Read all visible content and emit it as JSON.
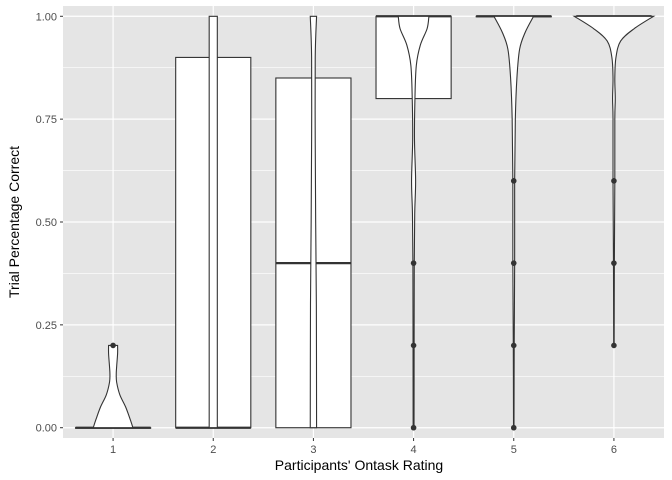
{
  "chart_data": {
    "type": "box-violin",
    "xlabel": "Participants' Ontask Rating",
    "ylabel": "Trial Percentage Correct",
    "categories": [
      "1",
      "2",
      "3",
      "4",
      "5",
      "6"
    ],
    "ylim": [
      -0.025,
      1.025
    ],
    "yticks": [
      0.0,
      0.25,
      0.5,
      0.75,
      1.0
    ],
    "ytick_labels": [
      "0.00",
      "0.25",
      "0.50",
      "0.75",
      "1.00"
    ],
    "grid": true,
    "colors": {
      "panel": "#e5e5e5",
      "grid": "#ffffff",
      "outline": "#333333",
      "fill": "#ffffff",
      "point": "#333333"
    },
    "boxes": [
      {
        "category": "1",
        "q1": 0.0,
        "median": 0.0,
        "q3": 0.0
      },
      {
        "category": "2",
        "q1": 0.0,
        "median": 0.0,
        "q3": 0.9
      },
      {
        "category": "3",
        "q1": 0.0,
        "median": 0.4,
        "q3": 0.85
      },
      {
        "category": "4",
        "q1": 0.8,
        "median": 1.0,
        "q3": 1.0
      },
      {
        "category": "5",
        "q1": 1.0,
        "median": 1.0,
        "q3": 1.0
      },
      {
        "category": "6",
        "q1": 1.0,
        "median": 1.0,
        "q3": 1.0
      }
    ],
    "outliers": [
      {
        "category": "1",
        "values": [
          0.2
        ]
      },
      {
        "category": "4",
        "values": [
          0.0,
          0.2,
          0.4
        ]
      },
      {
        "category": "5",
        "values": [
          0.0,
          0.2,
          0.4,
          0.6
        ]
      },
      {
        "category": "6",
        "values": [
          0.2,
          0.4,
          0.6
        ]
      }
    ],
    "violins": [
      {
        "category": "1",
        "density": [
          [
            0.0,
            0.44
          ],
          [
            0.02,
            0.38
          ],
          [
            0.05,
            0.28
          ],
          [
            0.08,
            0.15
          ],
          [
            0.11,
            0.08
          ],
          [
            0.13,
            0.07
          ],
          [
            0.15,
            0.08
          ],
          [
            0.18,
            0.1
          ],
          [
            0.2,
            0.1
          ]
        ]
      },
      {
        "category": "2",
        "density": [
          [
            0.0,
            0.09
          ],
          [
            0.5,
            0.09
          ],
          [
            1.0,
            0.09
          ]
        ]
      },
      {
        "category": "3",
        "density": [
          [
            0.0,
            0.07
          ],
          [
            0.3,
            0.065
          ],
          [
            0.5,
            0.05
          ],
          [
            0.7,
            0.04
          ],
          [
            0.9,
            0.04
          ],
          [
            1.0,
            0.07
          ]
        ]
      },
      {
        "category": "4",
        "density": [
          [
            0.0,
            0.01
          ],
          [
            0.2,
            0.012
          ],
          [
            0.4,
            0.015
          ],
          [
            0.52,
            0.025
          ],
          [
            0.6,
            0.045
          ],
          [
            0.7,
            0.02
          ],
          [
            0.8,
            0.03
          ],
          [
            0.88,
            0.06
          ],
          [
            0.93,
            0.15
          ],
          [
            0.97,
            0.3
          ],
          [
            1.0,
            0.34
          ]
        ]
      },
      {
        "category": "5",
        "density": [
          [
            0.0,
            0.005
          ],
          [
            0.2,
            0.01
          ],
          [
            0.4,
            0.02
          ],
          [
            0.6,
            0.02
          ],
          [
            0.75,
            0.035
          ],
          [
            0.85,
            0.07
          ],
          [
            0.92,
            0.13
          ],
          [
            0.96,
            0.25
          ],
          [
            1.0,
            0.44
          ]
        ]
      },
      {
        "category": "6",
        "density": [
          [
            0.2,
            0.005
          ],
          [
            0.4,
            0.01
          ],
          [
            0.6,
            0.02
          ],
          [
            0.75,
            0.02
          ],
          [
            0.8,
            0.03
          ],
          [
            0.85,
            0.02
          ],
          [
            0.9,
            0.045
          ],
          [
            0.94,
            0.15
          ],
          [
            0.97,
            0.45
          ],
          [
            1.0,
            0.88
          ]
        ]
      }
    ]
  }
}
